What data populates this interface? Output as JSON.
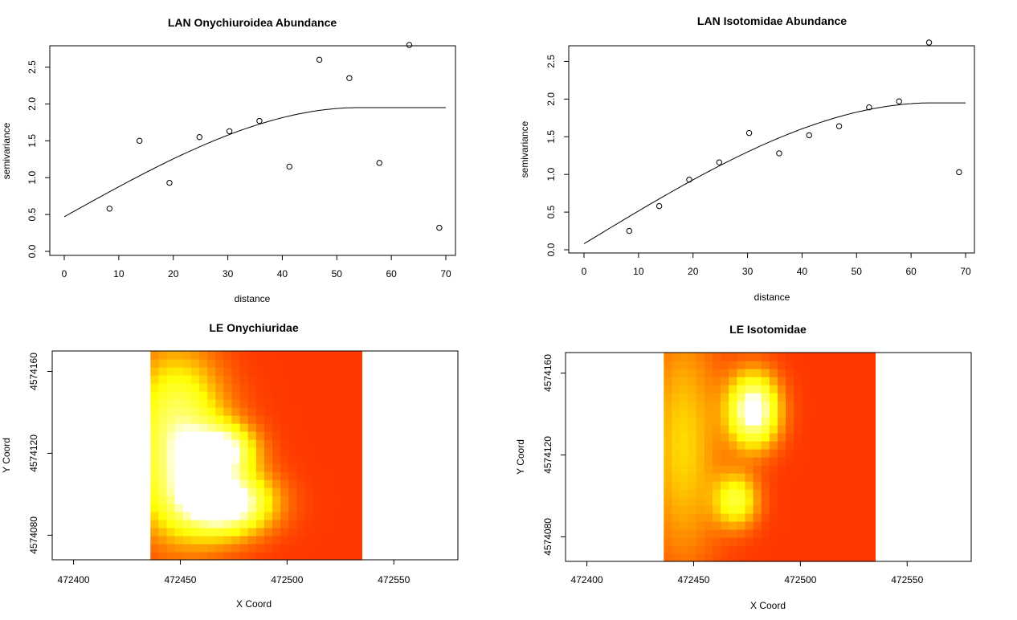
{
  "chart_data": [
    {
      "type": "scatter",
      "title": "LAN Onychiuroidea Abundance",
      "xlabel": "distance",
      "ylabel": "semivariance",
      "xlim": [
        0,
        70
      ],
      "ylim": [
        0,
        2.8
      ],
      "xticks": [
        "0",
        "10",
        "20",
        "30",
        "40",
        "50",
        "60",
        "70"
      ],
      "yticks": [
        "0.0",
        "0.5",
        "1.0",
        "1.5",
        "2.0",
        "2.5"
      ],
      "x": [
        8.3,
        13.8,
        19.3,
        24.8,
        30.3,
        35.8,
        41.3,
        46.8,
        52.3,
        57.8,
        63.3,
        68.8
      ],
      "y": [
        0.58,
        1.5,
        0.93,
        1.55,
        1.63,
        1.77,
        1.15,
        2.6,
        2.35,
        1.2,
        2.8,
        0.32
      ],
      "model": {
        "nugget": 0.47,
        "sill": 1.95,
        "range": 54
      }
    },
    {
      "type": "scatter",
      "title": "LAN Isotomidae Abundance",
      "xlabel": "distance",
      "ylabel": "semivariance",
      "xlim": [
        0,
        70
      ],
      "ylim": [
        0,
        2.75
      ],
      "xticks": [
        "0",
        "10",
        "20",
        "30",
        "40",
        "50",
        "60",
        "70"
      ],
      "yticks": [
        "0.0",
        "0.5",
        "1.0",
        "1.5",
        "2.0",
        "2.5"
      ],
      "x": [
        8.3,
        13.8,
        19.3,
        24.8,
        30.3,
        35.8,
        41.3,
        46.8,
        52.3,
        57.8,
        63.3,
        68.8
      ],
      "y": [
        0.25,
        0.58,
        0.93,
        1.16,
        1.55,
        1.28,
        1.52,
        1.64,
        1.89,
        1.97,
        2.75,
        1.03
      ],
      "model": {
        "nugget": 0.08,
        "sill": 1.95,
        "range": 64
      }
    },
    {
      "type": "heatmap",
      "title": "LE Onychiuridae",
      "xlabel": "X Coord",
      "ylabel": "Y Coord",
      "xlim": [
        472390,
        472580
      ],
      "ylim": [
        4574068,
        4574170
      ],
      "grid_extent": {
        "x": [
          472436,
          472535
        ],
        "y": [
          4574068,
          4574170
        ]
      },
      "xticks": [
        "472400",
        "472450",
        "472500",
        "472550"
      ],
      "yticks": [
        "4574080",
        "4574120",
        "4574160"
      ],
      "hotspots": [
        {
          "x": 472472,
          "y": 4574096,
          "intensity": 1.0,
          "sx": 14,
          "sy": 10
        },
        {
          "x": 472470,
          "y": 4574122,
          "intensity": 0.75,
          "sx": 10,
          "sy": 8
        },
        {
          "x": 472452,
          "y": 4574110,
          "intensity": 0.7,
          "sx": 16,
          "sy": 22
        },
        {
          "x": 472448,
          "y": 4574145,
          "intensity": 0.45,
          "sx": 14,
          "sy": 20
        }
      ],
      "colormap": "heat"
    },
    {
      "type": "heatmap",
      "title": "LE Isotomidae",
      "xlabel": "X Coord",
      "ylabel": "Y Coord",
      "xlim": [
        472390,
        472580
      ],
      "ylim": [
        4574068,
        4574170
      ],
      "grid_extent": {
        "x": [
          472436,
          472535
        ],
        "y": [
          4574068,
          4574170
        ]
      },
      "xticks": [
        "472400",
        "472450",
        "472500",
        "472550"
      ],
      "yticks": [
        "4574080",
        "4574120",
        "4574160"
      ],
      "hotspots": [
        {
          "x": 472478,
          "y": 4574142,
          "intensity": 1.0,
          "sx": 8,
          "sy": 12
        },
        {
          "x": 472470,
          "y": 4574098,
          "intensity": 0.55,
          "sx": 7,
          "sy": 9
        },
        {
          "x": 472445,
          "y": 4574125,
          "intensity": 0.35,
          "sx": 12,
          "sy": 40
        }
      ],
      "colormap": "heat"
    }
  ]
}
